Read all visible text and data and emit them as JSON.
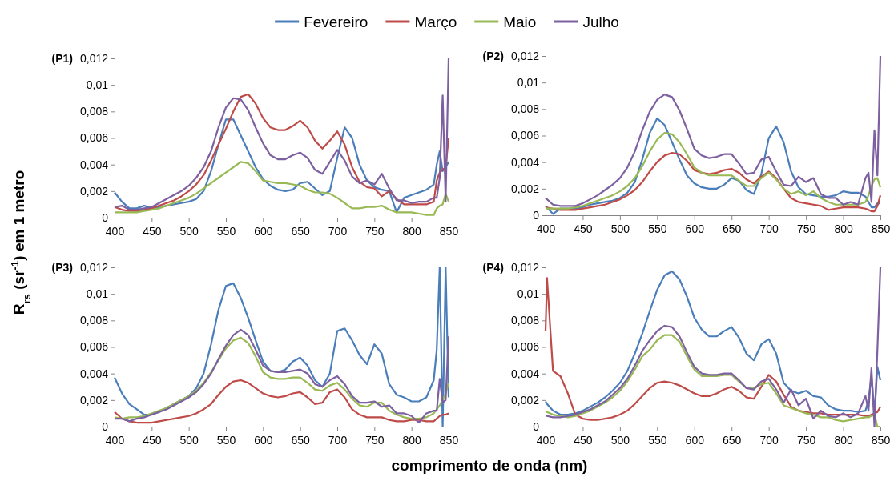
{
  "chart_data": [
    {
      "type": "line",
      "title": "(P1)",
      "ylabel": "R$_{rs}$ (sr$^{-1}$) em 1 metro",
      "legend": "top",
      "xlim": [
        400,
        850
      ],
      "xticks": [
        400,
        450,
        500,
        550,
        600,
        650,
        700,
        750,
        800,
        850
      ],
      "ylim": [
        0,
        0.012
      ],
      "yticks": [
        {
          "value": 0,
          "label": "0"
        },
        {
          "value": 0.002,
          "label": "0,002"
        },
        {
          "value": 0.004,
          "label": "0,004"
        },
        {
          "value": 0.006,
          "label": "0,006"
        },
        {
          "value": 0.008,
          "label": "0,008"
        },
        {
          "value": 0.01,
          "label": "0,01"
        },
        {
          "value": 0.012,
          "label": "0,012"
        }
      ],
      "x": [
        400,
        410,
        420,
        430,
        440,
        450,
        460,
        470,
        480,
        490,
        500,
        510,
        520,
        530,
        540,
        550,
        560,
        570,
        580,
        590,
        600,
        610,
        620,
        630,
        640,
        650,
        660,
        670,
        680,
        690,
        700,
        710,
        720,
        730,
        740,
        750,
        760,
        770,
        780,
        790,
        800,
        810,
        820,
        830,
        834,
        838,
        842,
        846,
        850
      ],
      "series": [
        {
          "name": "Fevereiro",
          "color": "#4a7ebb",
          "values": [
            0.0019,
            0.0012,
            0.0007,
            0.0007,
            0.0009,
            0.0007,
            0.0008,
            0.0009,
            0.001,
            0.0011,
            0.0012,
            0.0014,
            0.002,
            0.0035,
            0.0055,
            0.0074,
            0.0074,
            0.0062,
            0.005,
            0.0038,
            0.0029,
            0.0024,
            0.0021,
            0.002,
            0.0021,
            0.0026,
            0.0027,
            0.0022,
            0.0017,
            0.002,
            0.0045,
            0.0068,
            0.006,
            0.004,
            0.0028,
            0.0023,
            0.0021,
            0.002,
            0.0004,
            0.0015,
            0.0017,
            0.0019,
            0.0021,
            0.0025,
            0.004,
            0.005,
            0.0035,
            0.0038,
            0.0042
          ]
        },
        {
          "name": "Março",
          "color": "#be4b48",
          "values": [
            0.0008,
            0.0006,
            0.0005,
            0.0005,
            0.0006,
            0.0007,
            0.0009,
            0.0011,
            0.0013,
            0.0016,
            0.002,
            0.0025,
            0.0032,
            0.0043,
            0.0055,
            0.0067,
            0.008,
            0.0091,
            0.0093,
            0.0086,
            0.0075,
            0.0068,
            0.0066,
            0.0066,
            0.0069,
            0.0073,
            0.0068,
            0.0058,
            0.0052,
            0.0058,
            0.0065,
            0.0055,
            0.0038,
            0.0027,
            0.0023,
            0.0022,
            0.0016,
            0.002,
            0.0014,
            0.001,
            0.001,
            0.001,
            0.001,
            0.0012,
            0.0028,
            0.0034,
            0.0036,
            0.0038,
            0.006
          ]
        },
        {
          "name": "Maio",
          "color": "#98b954",
          "values": [
            0.0004,
            0.0004,
            0.0004,
            0.0004,
            0.0005,
            0.0006,
            0.0007,
            0.0009,
            0.0011,
            0.0013,
            0.0015,
            0.0018,
            0.0022,
            0.0026,
            0.003,
            0.0034,
            0.0038,
            0.0042,
            0.0041,
            0.0035,
            0.0028,
            0.0027,
            0.0026,
            0.0026,
            0.0025,
            0.0024,
            0.0021,
            0.0019,
            0.0019,
            0.0018,
            0.0015,
            0.0011,
            0.0007,
            0.0007,
            0.0008,
            0.0008,
            0.0009,
            0.0006,
            0.0004,
            0.0004,
            0.0004,
            0.0003,
            0.0002,
            0.0002,
            0.0007,
            0.0009,
            0.001,
            0.0018,
            0.0012
          ]
        },
        {
          "name": "Julho",
          "color": "#7d60a0",
          "values": [
            0.0008,
            0.0009,
            0.0006,
            0.0006,
            0.0007,
            0.0008,
            0.0011,
            0.0014,
            0.0017,
            0.002,
            0.0024,
            0.003,
            0.0038,
            0.005,
            0.0068,
            0.0083,
            0.009,
            0.0089,
            0.0081,
            0.0068,
            0.0056,
            0.0047,
            0.0044,
            0.0044,
            0.0047,
            0.0049,
            0.0045,
            0.0036,
            0.0033,
            0.0042,
            0.0051,
            0.0043,
            0.0031,
            0.0026,
            0.0028,
            0.0025,
            0.0033,
            0.0022,
            0.0013,
            0.0013,
            0.0011,
            0.0012,
            0.0012,
            0.0015,
            0.0015,
            0.003,
            0.0092,
            0.0012,
            0.012
          ]
        }
      ]
    },
    {
      "type": "line",
      "title": "(P2)",
      "xlim": [
        400,
        850
      ],
      "xticks": [
        400,
        450,
        500,
        550,
        600,
        650,
        700,
        750,
        800,
        850
      ],
      "ylim": [
        0,
        0.012
      ],
      "yticks": [
        {
          "value": 0,
          "label": "0"
        },
        {
          "value": 0.002,
          "label": "0,002"
        },
        {
          "value": 0.004,
          "label": "0,004"
        },
        {
          "value": 0.006,
          "label": "0,006"
        },
        {
          "value": 0.008,
          "label": "0,008"
        },
        {
          "value": 0.01,
          "label": "0,01"
        },
        {
          "value": 0.012,
          "label": "0,012"
        }
      ],
      "x": [
        400,
        410,
        420,
        430,
        440,
        450,
        460,
        470,
        480,
        490,
        500,
        510,
        520,
        530,
        540,
        550,
        560,
        570,
        580,
        590,
        600,
        610,
        620,
        630,
        640,
        650,
        660,
        670,
        680,
        690,
        700,
        710,
        720,
        730,
        740,
        750,
        760,
        770,
        780,
        790,
        800,
        810,
        820,
        830,
        834,
        838,
        842,
        846,
        850
      ],
      "series": [
        {
          "color": "#4a7ebb",
          "values": [
            0.0007,
            0.0001,
            0.0005,
            0.0005,
            0.0005,
            0.0006,
            0.0008,
            0.0009,
            0.001,
            0.0011,
            0.0013,
            0.0017,
            0.0025,
            0.0042,
            0.0062,
            0.0073,
            0.0068,
            0.0055,
            0.0042,
            0.003,
            0.0024,
            0.0021,
            0.002,
            0.002,
            0.0023,
            0.0028,
            0.0026,
            0.0019,
            0.0016,
            0.0031,
            0.0058,
            0.0067,
            0.0055,
            0.0033,
            0.0021,
            0.0016,
            0.0015,
            0.0014,
            0.0014,
            0.0015,
            0.0018,
            0.0017,
            0.0017,
            0.0014,
            0.001,
            0.0006,
            0.0006,
            0.0009,
            0.0009
          ]
        },
        {
          "color": "#be4b48",
          "values": [
            0.0006,
            0.0005,
            0.0004,
            0.0004,
            0.0004,
            0.0005,
            0.0006,
            0.0007,
            0.0008,
            0.001,
            0.0012,
            0.0015,
            0.0019,
            0.0025,
            0.0033,
            0.004,
            0.0045,
            0.0047,
            0.0046,
            0.0041,
            0.0034,
            0.0032,
            0.0031,
            0.0032,
            0.0034,
            0.0035,
            0.0032,
            0.0027,
            0.0024,
            0.0029,
            0.0033,
            0.0028,
            0.002,
            0.0013,
            0.001,
            0.0009,
            0.0008,
            0.0007,
            0.0004,
            0.0005,
            0.0006,
            0.0006,
            0.0006,
            0.0005,
            0.0004,
            0.0003,
            0.0003,
            0.0007,
            0.0015
          ]
        },
        {
          "color": "#98b954",
          "values": [
            0.0005,
            0.0005,
            0.0005,
            0.0005,
            0.0006,
            0.0007,
            0.0009,
            0.0011,
            0.0013,
            0.0015,
            0.0018,
            0.0022,
            0.0028,
            0.0037,
            0.0048,
            0.0057,
            0.0062,
            0.0061,
            0.0055,
            0.0046,
            0.0036,
            0.0032,
            0.003,
            0.003,
            0.003,
            0.003,
            0.0026,
            0.0022,
            0.0022,
            0.0028,
            0.0032,
            0.0027,
            0.002,
            0.0016,
            0.0018,
            0.0015,
            0.0018,
            0.0013,
            0.001,
            0.0008,
            0.0008,
            0.0008,
            0.0008,
            0.001,
            0.0015,
            0.0022,
            0.0027,
            0.0028,
            0.0021
          ]
        },
        {
          "color": "#7d60a0",
          "values": [
            0.0013,
            0.0008,
            0.0007,
            0.0007,
            0.0007,
            0.0009,
            0.0012,
            0.0015,
            0.0019,
            0.0023,
            0.0028,
            0.0036,
            0.0048,
            0.0064,
            0.0078,
            0.0087,
            0.0091,
            0.0089,
            0.0079,
            0.0065,
            0.005,
            0.0045,
            0.0043,
            0.0044,
            0.0046,
            0.0046,
            0.0039,
            0.0031,
            0.0032,
            0.0042,
            0.0044,
            0.0033,
            0.0023,
            0.0022,
            0.0029,
            0.0025,
            0.0028,
            0.0016,
            0.0013,
            0.0013,
            0.0008,
            0.001,
            0.0008,
            0.0028,
            0.0032,
            0.001,
            0.0064,
            0.003,
            0.012
          ]
        }
      ]
    },
    {
      "type": "line",
      "title": "(P3)",
      "xlabel": "comprimento de onda (nm)",
      "xlim": [
        400,
        850
      ],
      "xticks": [
        400,
        450,
        500,
        550,
        600,
        650,
        700,
        750,
        800,
        850
      ],
      "ylim": [
        0,
        0.012
      ],
      "yticks": [
        {
          "value": 0,
          "label": "0"
        },
        {
          "value": 0.002,
          "label": "0,002"
        },
        {
          "value": 0.004,
          "label": "0,004"
        },
        {
          "value": 0.006,
          "label": "0,006"
        },
        {
          "value": 0.008,
          "label": "0,008"
        },
        {
          "value": 0.01,
          "label": "0,01"
        },
        {
          "value": 0.012,
          "label": "0,012"
        }
      ],
      "x": [
        400,
        410,
        420,
        430,
        440,
        450,
        460,
        470,
        480,
        490,
        500,
        510,
        520,
        530,
        540,
        550,
        560,
        570,
        580,
        590,
        600,
        610,
        620,
        630,
        640,
        650,
        660,
        670,
        680,
        690,
        700,
        710,
        720,
        730,
        740,
        750,
        760,
        770,
        780,
        790,
        800,
        810,
        820,
        830,
        834,
        838,
        842,
        846,
        850
      ],
      "series": [
        {
          "color": "#4a7ebb",
          "values": [
            0.0037,
            0.0025,
            0.0017,
            0.0013,
            0.0009,
            0.0009,
            0.0011,
            0.0014,
            0.0017,
            0.002,
            0.0023,
            0.0029,
            0.004,
            0.0062,
            0.0088,
            0.0106,
            0.0108,
            0.0097,
            0.0082,
            0.0065,
            0.0049,
            0.0042,
            0.0041,
            0.0043,
            0.0049,
            0.0052,
            0.0046,
            0.0035,
            0.003,
            0.004,
            0.0072,
            0.0074,
            0.0065,
            0.0054,
            0.0047,
            0.0062,
            0.0055,
            0.0032,
            0.0024,
            0.0022,
            0.0019,
            0.0019,
            0.0022,
            0.0035,
            0.0058,
            0.012,
            0,
            0.012,
            0.0022
          ]
        },
        {
          "color": "#be4b48",
          "values": [
            0.0011,
            0.0006,
            0.0004,
            0.0003,
            0.0003,
            0.0003,
            0.0004,
            0.0005,
            0.0006,
            0.0007,
            0.0008,
            0.001,
            0.0013,
            0.0017,
            0.0024,
            0.003,
            0.0034,
            0.0035,
            0.0033,
            0.0029,
            0.0025,
            0.0023,
            0.0022,
            0.0023,
            0.0025,
            0.0026,
            0.0022,
            0.0017,
            0.0018,
            0.0026,
            0.0028,
            0.0022,
            0.0013,
            0.0009,
            0.0007,
            0.0007,
            0.0007,
            0.0005,
            0.0004,
            0.0004,
            0.0005,
            0.0005,
            0.0004,
            0.0004,
            0.0006,
            0.0008,
            0.0009,
            0.0009,
            0.001
          ]
        },
        {
          "color": "#98b954",
          "values": [
            0.0007,
            0.0006,
            0.0007,
            0.0007,
            0.0008,
            0.001,
            0.0012,
            0.0014,
            0.0017,
            0.002,
            0.0023,
            0.0027,
            0.0033,
            0.0041,
            0.005,
            0.0059,
            0.0065,
            0.0067,
            0.0063,
            0.0053,
            0.0041,
            0.0037,
            0.0036,
            0.0036,
            0.0037,
            0.0037,
            0.0033,
            0.0028,
            0.0027,
            0.0031,
            0.0033,
            0.0028,
            0.0021,
            0.0016,
            0.0015,
            0.0018,
            0.0018,
            0.0012,
            0.0009,
            0.0007,
            0.0006,
            0.0006,
            0.0007,
            0.001,
            0.0013,
            0.0016,
            0.002,
            0.0025,
            0.0033
          ]
        },
        {
          "color": "#7d60a0",
          "values": [
            0.0006,
            0.0006,
            0.0004,
            0.0006,
            0.0007,
            0.0009,
            0.0011,
            0.0013,
            0.0016,
            0.0019,
            0.0022,
            0.0026,
            0.0032,
            0.004,
            0.0051,
            0.0061,
            0.0069,
            0.0073,
            0.0069,
            0.0058,
            0.0046,
            0.0042,
            0.0041,
            0.0041,
            0.0042,
            0.0043,
            0.004,
            0.0032,
            0.003,
            0.0035,
            0.0038,
            0.0032,
            0.0023,
            0.0018,
            0.0018,
            0.0019,
            0.0015,
            0.0016,
            0.001,
            0.001,
            0.0008,
            0.0003,
            0.001,
            0.0012,
            0.0012,
            0.0036,
            0.0018,
            0.002,
            0.0068
          ]
        }
      ]
    },
    {
      "type": "line",
      "title": "(P4)",
      "xlim": [
        400,
        850
      ],
      "xticks": [
        400,
        450,
        500,
        550,
        600,
        650,
        700,
        750,
        800,
        850
      ],
      "ylim": [
        0,
        0.012
      ],
      "yticks": [
        {
          "value": 0,
          "label": "0"
        },
        {
          "value": 0.002,
          "label": "0,002"
        },
        {
          "value": 0.004,
          "label": "0,004"
        },
        {
          "value": 0.006,
          "label": "0,006"
        },
        {
          "value": 0.008,
          "label": "0,008"
        },
        {
          "value": 0.01,
          "label": "0,01"
        },
        {
          "value": 0.012,
          "label": "0,012"
        }
      ],
      "x": [
        400,
        402,
        410,
        420,
        430,
        440,
        450,
        460,
        470,
        480,
        490,
        500,
        510,
        520,
        530,
        540,
        550,
        560,
        570,
        580,
        590,
        600,
        610,
        620,
        630,
        640,
        650,
        660,
        670,
        680,
        690,
        700,
        710,
        720,
        730,
        740,
        750,
        760,
        770,
        780,
        790,
        800,
        810,
        820,
        830,
        834,
        838,
        842,
        846,
        850
      ],
      "series": [
        {
          "color": "#4a7ebb",
          "values": [
            0.0019,
            0.0017,
            0.0012,
            0.0009,
            0.0009,
            0.001,
            0.0012,
            0.0015,
            0.0018,
            0.0022,
            0.0027,
            0.0033,
            0.0042,
            0.0055,
            0.007,
            0.0087,
            0.0103,
            0.0114,
            0.0117,
            0.0111,
            0.0098,
            0.0082,
            0.0073,
            0.0068,
            0.0068,
            0.0072,
            0.0075,
            0.0067,
            0.0055,
            0.005,
            0.0062,
            0.0066,
            0.0055,
            0.0033,
            0.0027,
            0.0025,
            0.0027,
            0.0023,
            0.0022,
            0.0016,
            0.0013,
            0.0012,
            0.0012,
            0.0011,
            0.0012,
            0.002,
            0.0038,
            0.001,
            0.0045,
            0.0035
          ]
        },
        {
          "color": "#be4b48",
          "values": [
            0.0072,
            0.0112,
            0.0042,
            0.0038,
            0.0025,
            0.0009,
            0.0006,
            0.0005,
            0.0005,
            0.0006,
            0.0007,
            0.0009,
            0.0012,
            0.0017,
            0.0023,
            0.0029,
            0.0033,
            0.0034,
            0.0033,
            0.0031,
            0.0028,
            0.0025,
            0.0023,
            0.0023,
            0.0025,
            0.0028,
            0.003,
            0.0027,
            0.0022,
            0.0021,
            0.003,
            0.0039,
            0.0034,
            0.0024,
            0.0015,
            0.0012,
            0.0011,
            0.001,
            0.001,
            0.0009,
            0.0009,
            0.0009,
            0.0009,
            0.0009,
            0.0008,
            0.0008,
            0.0009,
            0.001,
            0.0011,
            0.0015
          ]
        },
        {
          "color": "#98b954",
          "values": [
            0.0012,
            0.0011,
            0.0009,
            0.0008,
            0.0007,
            0.0008,
            0.001,
            0.0012,
            0.0015,
            0.0018,
            0.0022,
            0.0027,
            0.0034,
            0.0043,
            0.0053,
            0.0058,
            0.0065,
            0.0069,
            0.0069,
            0.0064,
            0.0053,
            0.0043,
            0.0038,
            0.0038,
            0.0038,
            0.0039,
            0.0039,
            0.0034,
            0.0029,
            0.0029,
            0.0032,
            0.0033,
            0.0025,
            0.0016,
            0.0014,
            0.0012,
            0.001,
            0.0009,
            0.0007,
            0.0007,
            0.0005,
            0.0004,
            0.0005,
            0.0006,
            0.0007,
            0.0007,
            0.0008,
            0.0009,
            0,
            0
          ]
        },
        {
          "color": "#7d60a0",
          "values": [
            0.0008,
            0.0008,
            0.0007,
            0.0007,
            0.0008,
            0.0009,
            0.0011,
            0.0013,
            0.0016,
            0.0019,
            0.0024,
            0.0029,
            0.0036,
            0.0046,
            0.0057,
            0.0065,
            0.0072,
            0.0076,
            0.0075,
            0.0068,
            0.0056,
            0.0045,
            0.004,
            0.0039,
            0.0039,
            0.004,
            0.004,
            0.0035,
            0.0029,
            0.0028,
            0.0034,
            0.0036,
            0.0028,
            0.0018,
            0.0028,
            0.0016,
            0.0021,
            0.0006,
            0.0012,
            0.0008,
            0.0007,
            0.001,
            0.0007,
            0.001,
            0.0023,
            0.0012,
            0.0044,
            0,
            0.0058,
            0.012
          ]
        }
      ]
    }
  ]
}
